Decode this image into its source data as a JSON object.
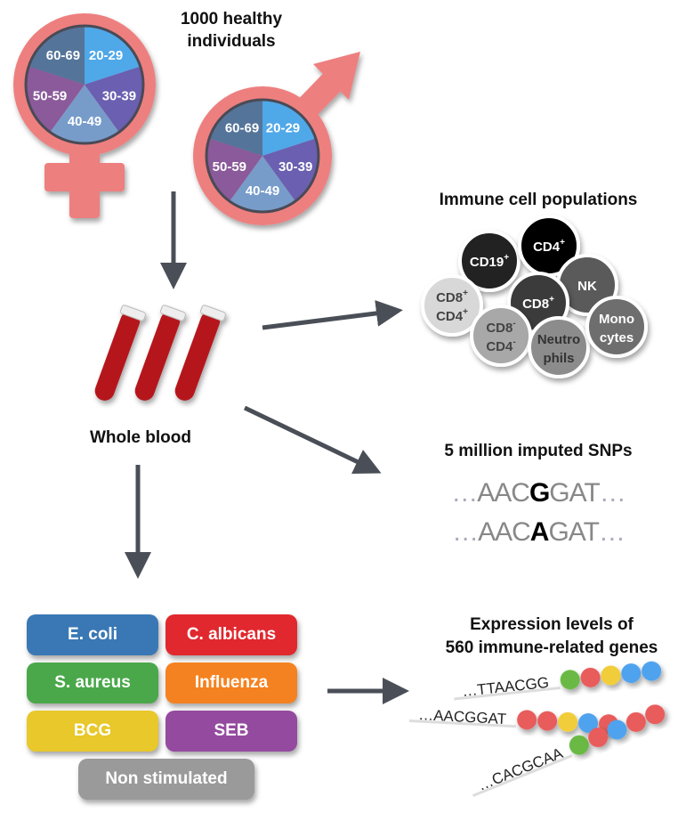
{
  "cohort": {
    "title_line1": "1000 healthy",
    "title_line2": "individuals",
    "age_groups": [
      "20-29",
      "30-39",
      "40-49",
      "50-59",
      "60-69"
    ],
    "age_colors": [
      "#4fa8e8",
      "#6a5fb0",
      "#779cca",
      "#8a5a9a",
      "#557499"
    ],
    "symbol_color": "#ee7f7f"
  },
  "blood": {
    "label": "Whole blood",
    "tube_color": "#b5191c"
  },
  "arrow_color": "#4a4f57",
  "cells": {
    "title": "Immune cell populations",
    "items": [
      {
        "line1": "CD19",
        "sup1": "+",
        "line2": "",
        "sup2": "",
        "fill": "#222222",
        "text": "#ffffff"
      },
      {
        "line1": "CD4",
        "sup1": "+",
        "line2": "",
        "sup2": "",
        "fill": "#050505",
        "text": "#ffffff"
      },
      {
        "line1": "NK",
        "sup1": "",
        "line2": "",
        "sup2": "",
        "fill": "#5a5a5a",
        "text": "#ffffff"
      },
      {
        "line1": "CD8",
        "sup1": "+",
        "line2": "",
        "sup2": "",
        "fill": "#3a3a3a",
        "text": "#ffffff"
      },
      {
        "line1": "CD8",
        "sup1": "+",
        "line2": "CD4",
        "sup2": "+",
        "fill": "#d8d8d8",
        "text": "#444444"
      },
      {
        "line1": "CD8",
        "sup1": "-",
        "line2": "CD4",
        "sup2": "-",
        "fill": "#a8a8a8",
        "text": "#444444"
      },
      {
        "line1": "Neutro",
        "sup1": "",
        "line2": "phils",
        "sup2": "",
        "fill": "#8c8c8c",
        "text": "#333333"
      },
      {
        "line1": "Mono",
        "sup1": "",
        "line2": "cytes",
        "sup2": "",
        "fill": "#6e6e6e",
        "text": "#ffffff"
      }
    ]
  },
  "snps": {
    "title": "5 million imputed SNPs",
    "rows": [
      {
        "prefix": "…",
        "before": "AAC",
        "variant": "G",
        "after": "GAT",
        "suffix": "…"
      },
      {
        "prefix": "…",
        "before": "AAC",
        "variant": "A",
        "after": "GAT",
        "suffix": "…"
      }
    ]
  },
  "stimuli": {
    "items": [
      {
        "label": "E. coli",
        "color": "#3a78b5"
      },
      {
        "label": "C. albicans",
        "color": "#e0282e"
      },
      {
        "label": "S. aureus",
        "color": "#4aa84a"
      },
      {
        "label": "Influenza",
        "color": "#f58220"
      },
      {
        "label": "BCG",
        "color": "#e8c82a"
      },
      {
        "label": "SEB",
        "color": "#944a9f"
      },
      {
        "label": "Non stimulated",
        "color": "#9a9a9a"
      }
    ]
  },
  "expression": {
    "title_line1": "Expression levels of",
    "title_line2": "560 immune-related genes",
    "rows": [
      {
        "seq": "…TTAACGG",
        "beads": [
          "#6ab945",
          "#e85c5c",
          "#f2cd3a",
          "#4fa3ee",
          "#4fa3ee"
        ]
      },
      {
        "seq": "…AACGGAT",
        "beads": [
          "#e85c5c",
          "#e85c5c",
          "#f2cd3a",
          "#4fa3ee",
          "#e85c5c"
        ]
      },
      {
        "seq": "…CACGCAA",
        "beads": [
          "#6ab945",
          "#e85c5c",
          "#4fa3ee",
          "#e85c5c",
          "#e85c5c"
        ]
      }
    ]
  }
}
